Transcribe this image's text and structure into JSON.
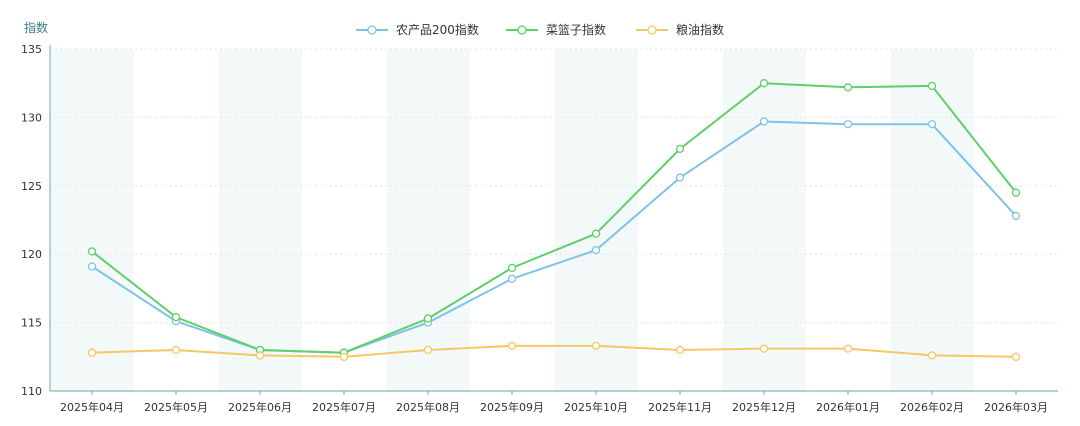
{
  "chart_data": {
    "type": "line",
    "ylabel": "指数",
    "ylim": [
      110,
      135
    ],
    "yticks": [
      110,
      115,
      120,
      125,
      130,
      135
    ],
    "grid": true,
    "legend_position": "top-center",
    "categories": [
      "2025年04月",
      "2025年05月",
      "2025年06月",
      "2025年07月",
      "2025年08月",
      "2025年09月",
      "2025年10月",
      "2025年11月",
      "2025年12月",
      "2026年01月",
      "2026年02月",
      "2026年03月"
    ],
    "series": [
      {
        "name": "农产品200指数",
        "color": "#7ec3e6",
        "values": [
          119.1,
          115.1,
          113.0,
          112.8,
          115.0,
          118.2,
          120.3,
          125.6,
          129.7,
          129.5,
          129.5,
          122.8
        ]
      },
      {
        "name": "菜篮子指数",
        "color": "#5fcf6a",
        "values": [
          120.2,
          115.4,
          113.0,
          112.8,
          115.3,
          119.0,
          121.5,
          127.7,
          132.5,
          132.2,
          132.3,
          124.5
        ]
      },
      {
        "name": "粮油指数",
        "color": "#f5c765",
        "values": [
          112.8,
          113.0,
          112.6,
          112.5,
          113.0,
          113.3,
          113.3,
          113.0,
          113.1,
          113.1,
          112.6,
          112.5
        ]
      }
    ]
  }
}
